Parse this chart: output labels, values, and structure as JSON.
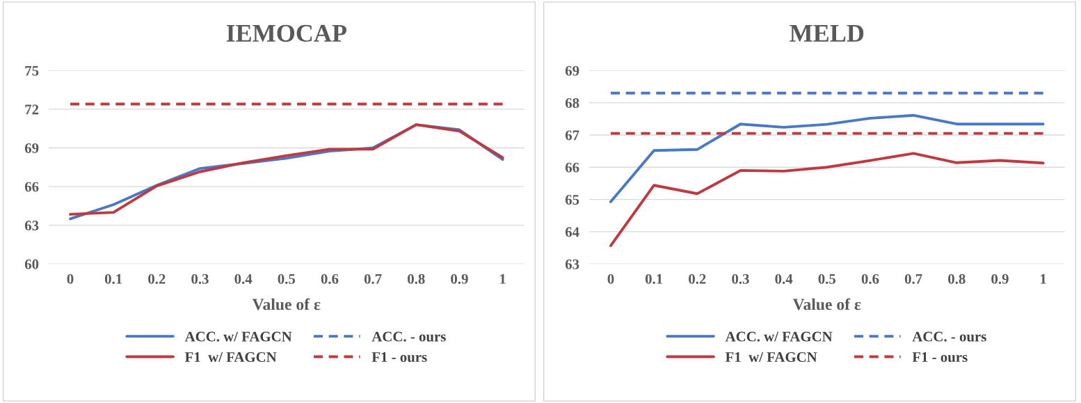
{
  "chart_data": [
    {
      "type": "line",
      "title": "IEMOCAP",
      "xlabel": "Value of ε",
      "categories": [
        "0",
        "0.1",
        "0.2",
        "0.3",
        "0.4",
        "0.5",
        "0.6",
        "0.7",
        "0.8",
        "0.9",
        "1"
      ],
      "ylim": [
        60,
        75
      ],
      "yticks": [
        60,
        63,
        66,
        69,
        72,
        75
      ],
      "grid": "y",
      "legend": "bottom",
      "series": [
        {
          "name": "ACC. w/ FAGCN",
          "color": "#4a78c8",
          "line_style": "solid",
          "values": [
            63.5,
            64.6,
            66.1,
            67.4,
            67.8,
            68.2,
            68.75,
            69.0,
            70.8,
            70.4,
            68.1
          ]
        },
        {
          "name": "F1  w/ FAGCN",
          "color": "#c0393f",
          "line_style": "solid",
          "values": [
            63.85,
            64.0,
            66.05,
            67.15,
            67.85,
            68.4,
            68.9,
            68.9,
            70.8,
            70.3,
            68.25
          ]
        },
        {
          "name": "ACC. - ours",
          "color": "#4a78c8",
          "line_style": "dashed",
          "values": [
            null,
            null,
            null,
            null,
            null,
            null,
            null,
            null,
            null,
            null,
            null
          ]
        },
        {
          "name": "F1 - ours",
          "color": "#c0393f",
          "line_style": "dashed",
          "values": [
            72.4,
            72.4,
            72.4,
            72.4,
            72.4,
            72.4,
            72.4,
            72.4,
            72.4,
            72.4,
            72.4
          ]
        }
      ]
    },
    {
      "type": "line",
      "title": "MELD",
      "xlabel": "Value of ε",
      "categories": [
        "0",
        "0.1",
        "0.2",
        "0.3",
        "0.4",
        "0.5",
        "0.6",
        "0.7",
        "0.8",
        "0.9",
        "1"
      ],
      "ylim": [
        63,
        69
      ],
      "yticks": [
        63,
        64,
        65,
        66,
        67,
        68,
        69
      ],
      "grid": "y",
      "legend": "bottom",
      "series": [
        {
          "name": "ACC. w/ FAGCN",
          "color": "#4a78c8",
          "line_style": "solid",
          "values": [
            64.93,
            66.52,
            66.55,
            67.34,
            67.24,
            67.33,
            67.52,
            67.61,
            67.34,
            67.34,
            67.34
          ]
        },
        {
          "name": "F1  w/ FAGCN",
          "color": "#c0393f",
          "line_style": "solid",
          "values": [
            63.57,
            65.44,
            65.18,
            65.9,
            65.88,
            66.0,
            66.21,
            66.43,
            66.14,
            66.21,
            66.13
          ]
        },
        {
          "name": "ACC. - ours",
          "color": "#4a78c8",
          "line_style": "dashed",
          "values": [
            68.3,
            68.3,
            68.3,
            68.3,
            68.3,
            68.3,
            68.3,
            68.3,
            68.3,
            68.3,
            68.3
          ]
        },
        {
          "name": "F1 - ours",
          "color": "#c0393f",
          "line_style": "dashed",
          "values": [
            67.05,
            67.05,
            67.05,
            67.05,
            67.05,
            67.05,
            67.05,
            67.05,
            67.05,
            67.05,
            67.05
          ]
        }
      ]
    }
  ]
}
